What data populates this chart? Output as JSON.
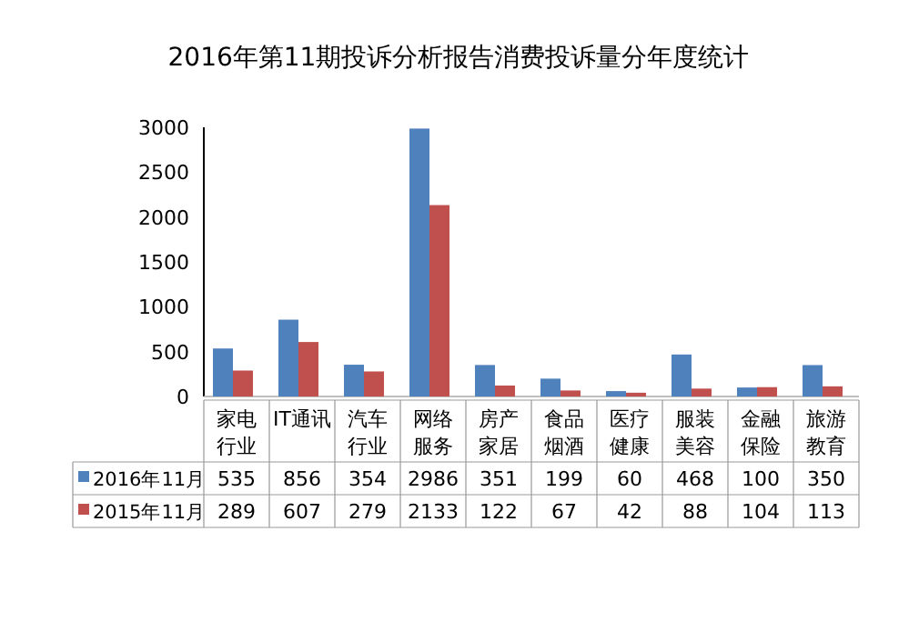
{
  "chart_data": {
    "type": "bar",
    "title": "2016年第11期投诉分析报告消费投诉量分年度统计",
    "categories": [
      "家电行业",
      "IT通讯",
      "汽车行业",
      "网络服务",
      "房产家居",
      "食品烟酒",
      "医疗健康",
      "服装美容",
      "金融保险",
      "旅游教育"
    ],
    "series": [
      {
        "name": "2016年11月",
        "color": "#4f81bd",
        "values": [
          535,
          856,
          354,
          2986,
          351,
          199,
          60,
          468,
          100,
          350
        ]
      },
      {
        "name": "2015年11月",
        "color": "#c0504d",
        "values": [
          289,
          607,
          279,
          2133,
          122,
          67,
          42,
          88,
          104,
          113
        ]
      }
    ],
    "ylim": [
      0,
      3000
    ],
    "yticks": [
      0,
      500,
      1000,
      1500,
      2000,
      2500,
      3000
    ],
    "data_labels": true,
    "legend": "bottom"
  }
}
